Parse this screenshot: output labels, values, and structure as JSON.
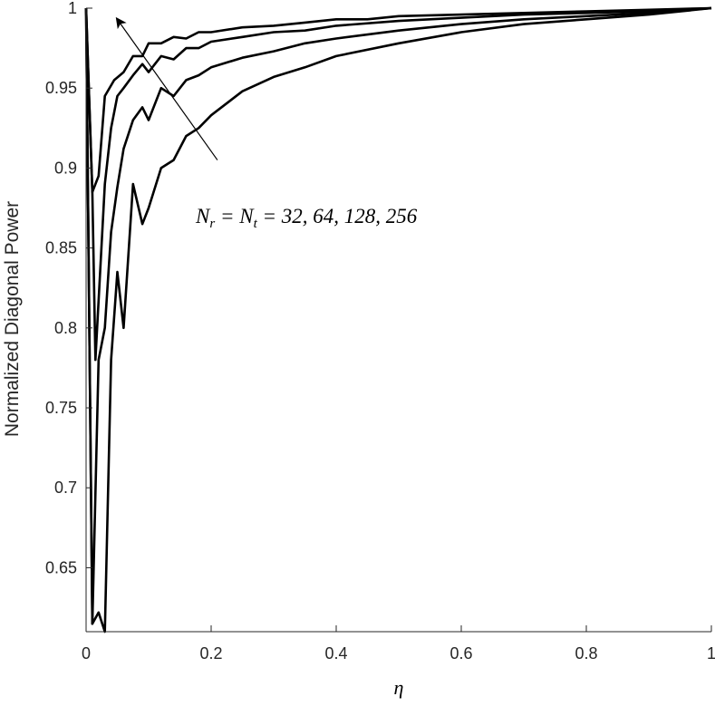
{
  "chart_data": {
    "type": "line",
    "title": "",
    "xlabel": "η",
    "ylabel": "Normalized Diagonal Power",
    "xlim": [
      0,
      1
    ],
    "ylim": [
      0.61,
      1
    ],
    "x_ticks": [
      "0",
      "0.2",
      "0.4",
      "0.6",
      "0.8",
      "1"
    ],
    "y_ticks": [
      "0.65",
      "0.7",
      "0.75",
      "0.8",
      "0.85",
      "0.9",
      "0.95",
      "1"
    ],
    "grid": false,
    "annotation": {
      "text": "N_r = N_t = 32, 64, 128, 256",
      "direction": "increasing N",
      "arrow_from": [
        0.21,
        0.905
      ],
      "arrow_to": [
        0.05,
        0.993
      ]
    },
    "line_color": "#000000",
    "series": [
      {
        "N": 32,
        "x": [
          0.0,
          0.01,
          0.02,
          0.03,
          0.045,
          0.06,
          0.075,
          0.09,
          0.1,
          0.12,
          0.14,
          0.16,
          0.18,
          0.2,
          0.25,
          0.3,
          0.35,
          0.4,
          0.45,
          0.5,
          0.6,
          0.7,
          0.8,
          0.9,
          1.0
        ],
        "y": [
          1.0,
          0.885,
          0.895,
          0.945,
          0.955,
          0.96,
          0.97,
          0.97,
          0.978,
          0.978,
          0.982,
          0.981,
          0.985,
          0.985,
          0.988,
          0.989,
          0.991,
          0.993,
          0.993,
          0.995,
          0.996,
          0.997,
          0.998,
          0.999,
          1.0
        ]
      },
      {
        "N": 64,
        "x": [
          0.0,
          0.01,
          0.015,
          0.03,
          0.04,
          0.05,
          0.06,
          0.075,
          0.09,
          0.1,
          0.12,
          0.14,
          0.16,
          0.18,
          0.2,
          0.25,
          0.3,
          0.35,
          0.4,
          0.5,
          0.6,
          0.7,
          0.8,
          0.9,
          1.0
        ],
        "y": [
          1.0,
          0.885,
          0.78,
          0.89,
          0.925,
          0.945,
          0.95,
          0.958,
          0.965,
          0.96,
          0.97,
          0.968,
          0.975,
          0.975,
          0.979,
          0.982,
          0.985,
          0.986,
          0.989,
          0.992,
          0.994,
          0.996,
          0.997,
          0.998,
          1.0
        ]
      },
      {
        "N": 128,
        "x": [
          0.0,
          0.01,
          0.02,
          0.03,
          0.04,
          0.05,
          0.06,
          0.075,
          0.09,
          0.1,
          0.12,
          0.14,
          0.16,
          0.18,
          0.2,
          0.25,
          0.3,
          0.35,
          0.4,
          0.5,
          0.6,
          0.7,
          0.8,
          0.9,
          1.0
        ],
        "y": [
          1.0,
          0.615,
          0.78,
          0.8,
          0.86,
          0.888,
          0.912,
          0.93,
          0.938,
          0.93,
          0.95,
          0.945,
          0.955,
          0.958,
          0.963,
          0.969,
          0.973,
          0.978,
          0.981,
          0.986,
          0.99,
          0.993,
          0.995,
          0.997,
          1.0
        ]
      },
      {
        "N": 256,
        "x": [
          0.0,
          0.01,
          0.02,
          0.03,
          0.04,
          0.05,
          0.06,
          0.075,
          0.09,
          0.1,
          0.12,
          0.14,
          0.16,
          0.18,
          0.2,
          0.25,
          0.3,
          0.35,
          0.4,
          0.5,
          0.6,
          0.7,
          0.8,
          0.9,
          1.0
        ],
        "y": [
          1.0,
          0.615,
          0.622,
          0.61,
          0.78,
          0.835,
          0.8,
          0.89,
          0.865,
          0.875,
          0.9,
          0.905,
          0.92,
          0.925,
          0.933,
          0.948,
          0.957,
          0.963,
          0.97,
          0.978,
          0.985,
          0.99,
          0.993,
          0.996,
          1.0
        ]
      }
    ]
  }
}
